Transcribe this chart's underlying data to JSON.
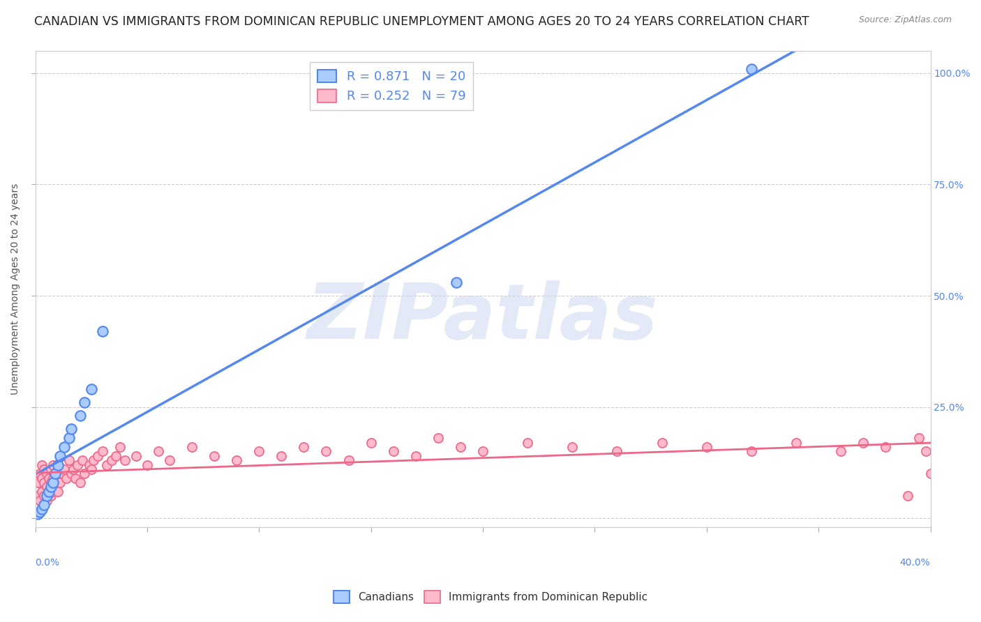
{
  "title": "CANADIAN VS IMMIGRANTS FROM DOMINICAN REPUBLIC UNEMPLOYMENT AMONG AGES 20 TO 24 YEARS CORRELATION CHART",
  "source": "Source: ZipAtlas.com",
  "ylabel": "Unemployment Among Ages 20 to 24 years",
  "background_color": "#ffffff",
  "watermark": "ZIPatlas",
  "canadians": {
    "R": 0.871,
    "N": 20,
    "color": "#5588ee",
    "fill_color": "#aaccff",
    "x": [
      0.001,
      0.002,
      0.003,
      0.004,
      0.005,
      0.006,
      0.007,
      0.008,
      0.009,
      0.01,
      0.011,
      0.013,
      0.015,
      0.016,
      0.02,
      0.022,
      0.025,
      0.03,
      0.188,
      0.32
    ],
    "y": [
      0.01,
      0.015,
      0.02,
      0.03,
      0.05,
      0.06,
      0.07,
      0.08,
      0.1,
      0.12,
      0.14,
      0.16,
      0.18,
      0.2,
      0.23,
      0.26,
      0.29,
      0.42,
      0.53,
      1.01
    ]
  },
  "immigrants": {
    "R": 0.252,
    "N": 79,
    "color": "#ee6688",
    "fill_color": "#ffbbcc",
    "x": [
      0.001,
      0.001,
      0.002,
      0.002,
      0.003,
      0.003,
      0.003,
      0.004,
      0.004,
      0.004,
      0.005,
      0.005,
      0.005,
      0.006,
      0.006,
      0.007,
      0.007,
      0.007,
      0.008,
      0.008,
      0.008,
      0.009,
      0.009,
      0.01,
      0.01,
      0.011,
      0.012,
      0.013,
      0.014,
      0.015,
      0.016,
      0.017,
      0.018,
      0.019,
      0.02,
      0.021,
      0.022,
      0.024,
      0.025,
      0.026,
      0.028,
      0.03,
      0.032,
      0.034,
      0.036,
      0.038,
      0.04,
      0.045,
      0.05,
      0.055,
      0.06,
      0.07,
      0.08,
      0.09,
      0.1,
      0.11,
      0.12,
      0.13,
      0.14,
      0.15,
      0.16,
      0.17,
      0.18,
      0.19,
      0.2,
      0.22,
      0.24,
      0.26,
      0.28,
      0.3,
      0.32,
      0.34,
      0.36,
      0.37,
      0.38,
      0.39,
      0.395,
      0.398,
      0.4
    ],
    "y": [
      0.05,
      0.08,
      0.04,
      0.1,
      0.06,
      0.09,
      0.12,
      0.05,
      0.08,
      0.11,
      0.04,
      0.07,
      0.1,
      0.06,
      0.09,
      0.05,
      0.08,
      0.11,
      0.06,
      0.09,
      0.12,
      0.07,
      0.1,
      0.06,
      0.09,
      0.08,
      0.1,
      0.11,
      0.09,
      0.13,
      0.1,
      0.11,
      0.09,
      0.12,
      0.08,
      0.13,
      0.1,
      0.12,
      0.11,
      0.13,
      0.14,
      0.15,
      0.12,
      0.13,
      0.14,
      0.16,
      0.13,
      0.14,
      0.12,
      0.15,
      0.13,
      0.16,
      0.14,
      0.13,
      0.15,
      0.14,
      0.16,
      0.15,
      0.13,
      0.17,
      0.15,
      0.14,
      0.18,
      0.16,
      0.15,
      0.17,
      0.16,
      0.15,
      0.17,
      0.16,
      0.15,
      0.17,
      0.15,
      0.17,
      0.16,
      0.05,
      0.18,
      0.15,
      0.1
    ]
  },
  "xlim": [
    0.0,
    0.4
  ],
  "ylim": [
    -0.02,
    1.05
  ],
  "ytick_pos": [
    0.0,
    0.25,
    0.5,
    0.75,
    1.0
  ],
  "ytick_labels_right": [
    "",
    "25.0%",
    "50.0%",
    "75.0%",
    "100.0%"
  ],
  "xtick_positions": [
    0.0,
    0.05,
    0.1,
    0.15,
    0.2,
    0.25,
    0.3,
    0.35,
    0.4
  ],
  "grid_color": "#cccccc",
  "title_fontsize": 12.5,
  "axis_label_fontsize": 10,
  "tick_fontsize": 10,
  "legend_fontsize": 13,
  "right_axis_color": "#5588ee"
}
